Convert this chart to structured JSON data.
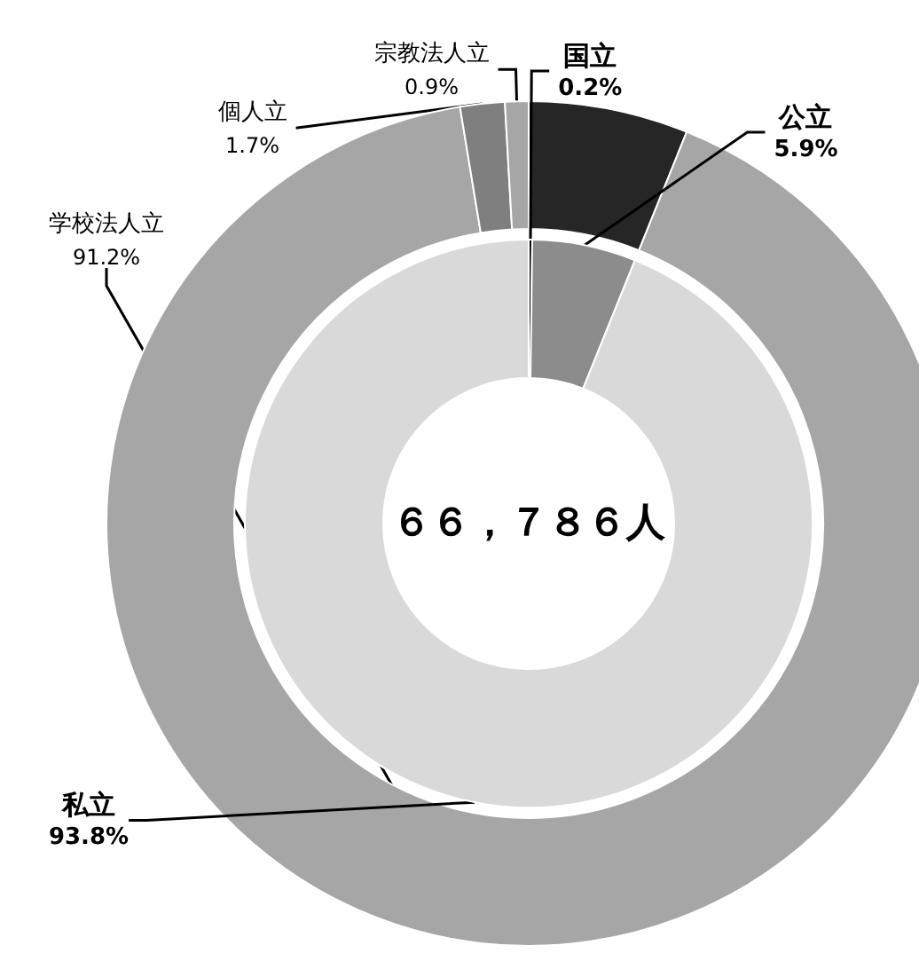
{
  "chart_data": [
    {
      "type": "donut",
      "legend": false,
      "annotations": [
        "６６，７８６人"
      ],
      "categories": [
        "国立",
        "公立",
        "私立"
      ],
      "values": [
        0.2,
        5.9,
        93.8
      ],
      "colors": [
        "#000000",
        "#8c8c8c",
        "#d9d9d9"
      ],
      "value_labels": [
        "0.2%",
        "5.9%",
        "93.8%"
      ]
    },
    {
      "type": "donut",
      "legend": false,
      "categories": [
        null,
        "学校法人立",
        "個人立",
        "宗教法人立"
      ],
      "values": [
        6.1,
        91.2,
        1.7,
        0.9
      ],
      "colors": [
        "#262626",
        "#a6a6a6",
        "#7f7f7f",
        "#a6a6a6"
      ],
      "value_labels": [
        null,
        "91.2%",
        "1.7%",
        "0.9%"
      ]
    }
  ]
}
